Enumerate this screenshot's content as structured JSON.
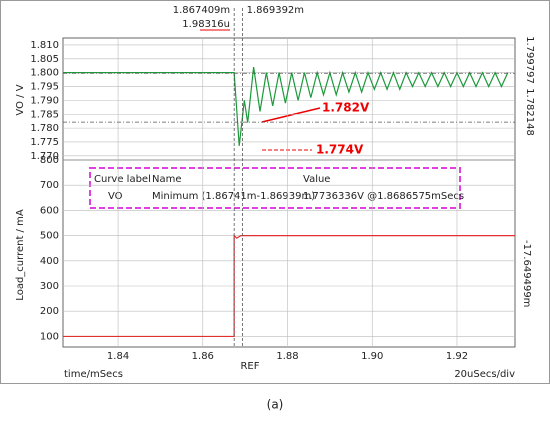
{
  "chart_data": [
    {
      "type": "line",
      "y_label": "VO / V",
      "xlim": [
        1.827,
        1.9337
      ],
      "ylim": [
        1.7685,
        1.8125
      ],
      "yticks": [
        {
          "value": 1.77,
          "label": "1.770"
        },
        1.775,
        {
          "value": 1.78,
          "label": "1.780"
        },
        1.785,
        {
          "value": 1.79,
          "label": "1.790"
        },
        1.795,
        {
          "value": 1.8,
          "label": "1.800"
        },
        1.805,
        {
          "value": 1.81,
          "label": "1.810"
        }
      ],
      "xticks": [
        1.84,
        1.86,
        1.88,
        {
          "value": 1.9,
          "label": "1.90"
        },
        1.92
      ],
      "grid": true,
      "series": [
        {
          "name": "VO",
          "color": "#1a9a3a",
          "x": [
            1.827,
            1.8674,
            1.8686,
            1.8698,
            1.8706,
            1.872,
            1.8735,
            1.875,
            1.8765,
            1.878,
            1.8795,
            1.881,
            1.8825,
            1.884,
            1.8855,
            1.887,
            1.8885,
            1.89,
            1.8915,
            1.893,
            1.8945,
            1.896,
            1.8975,
            1.899,
            1.9005,
            1.902,
            1.9035,
            1.905,
            1.9065,
            1.908,
            1.9095,
            1.911,
            1.9125,
            1.914,
            1.9155,
            1.917,
            1.9185,
            1.92,
            1.9215,
            1.923,
            1.9245,
            1.926,
            1.9275,
            1.929,
            1.9305,
            1.932
          ],
          "values": [
            1.8,
            1.8,
            1.7736,
            1.79,
            1.782,
            1.802,
            1.786,
            1.8,
            1.788,
            1.8,
            1.789,
            1.8,
            1.79,
            1.8,
            1.791,
            1.8,
            1.792,
            1.8,
            1.792,
            1.8,
            1.793,
            1.8,
            1.793,
            1.8,
            1.794,
            1.8,
            1.794,
            1.8,
            1.794,
            1.8,
            1.795,
            1.8,
            1.795,
            1.8,
            1.795,
            1.8,
            1.795,
            1.8,
            1.795,
            1.8,
            1.795,
            1.8,
            1.795,
            1.8,
            1.795,
            1.8
          ]
        }
      ]
    },
    {
      "type": "line",
      "y_label": "Load_current / mA",
      "xlim": [
        1.827,
        1.9337
      ],
      "ylim": [
        58,
        800
      ],
      "yticks": [
        100,
        200,
        300,
        400,
        500,
        600,
        700,
        800
      ],
      "xticks": [
        1.84,
        1.86,
        1.88,
        {
          "value": 1.9,
          "label": "1.90"
        },
        1.92
      ],
      "grid": true,
      "series": [
        {
          "name": "Load_current",
          "color": "#e03030",
          "x": [
            1.827,
            1.8674,
            1.8674,
            1.868,
            1.869,
            1.9337
          ],
          "values": [
            100,
            100,
            500,
            490,
            500,
            500
          ]
        }
      ]
    }
  ],
  "cursors": {
    "x": [
      {
        "value": 1.867409,
        "label": "1.867409m"
      },
      {
        "value": 1.869392,
        "label": "1.869392m"
      }
    ],
    "x_delta": "1.98316u",
    "y": [
      {
        "value": 1.799797,
        "label": "1.799797"
      },
      {
        "value": 1.782148,
        "label": "1.782148"
      }
    ],
    "y_delta": "-17.649499m"
  },
  "annotations": [
    "1.782V",
    "1.774V"
  ],
  "table": {
    "header": [
      "Curve label",
      "Name",
      "Value"
    ],
    "row": [
      "VO",
      "Minimum (1.86741m-1.86939m)",
      "1.7736336V @1.8686575mSecs"
    ]
  },
  "x_label": "time/mSecs",
  "x_div": "20uSecs/div",
  "ref": "REF",
  "caption": "(a)"
}
